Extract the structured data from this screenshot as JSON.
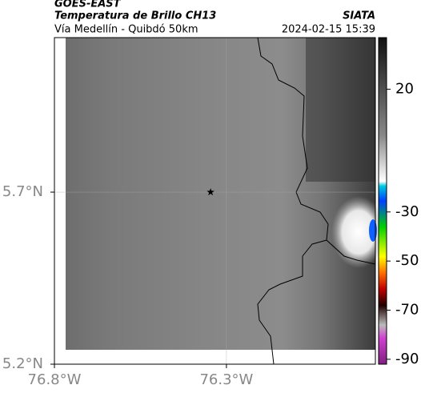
{
  "header": {
    "title": "GOES-EAST",
    "subtitle": "Temperatura de Brillo CH13",
    "route": "Vía Medellín - Quibdó 50km",
    "source": "SIATA",
    "datetime": "2024-02-15 15:39"
  },
  "map": {
    "xlim": [
      -76.8,
      -75.867
    ],
    "ylim": [
      5.2,
      6.149
    ],
    "xticks": [
      {
        "value": -76.8,
        "label": "76.8°W"
      },
      {
        "value": -76.3,
        "label": "76.3°W"
      }
    ],
    "yticks": [
      {
        "value": 5.2,
        "label": "5.2°N"
      },
      {
        "value": 5.7,
        "label": "5.7°N"
      }
    ],
    "marker": {
      "lon": -76.346,
      "lat": 5.7
    }
  },
  "colorbar": {
    "lim": [
      -92,
      41
    ],
    "ticks": [
      20,
      -30,
      -50,
      -70,
      -90
    ]
  }
}
